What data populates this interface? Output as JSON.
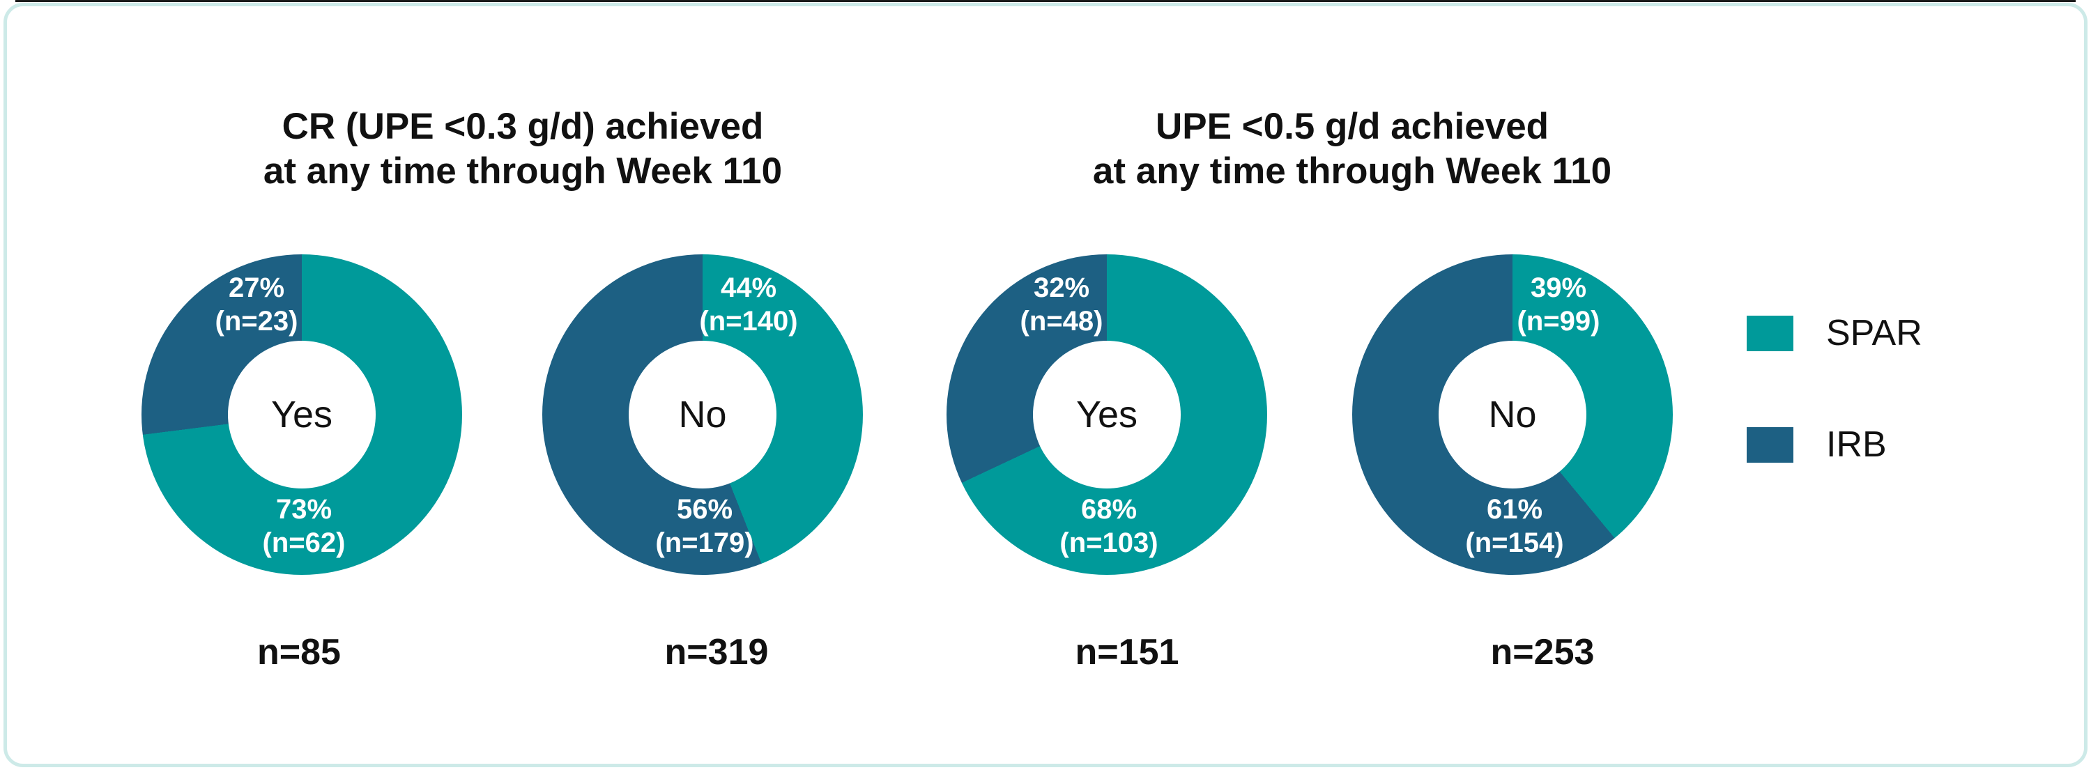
{
  "frame": {
    "border_color": "#cdeae8",
    "top_edge_color": "#1a1a1a",
    "background_color": "#ffffff"
  },
  "chart_data": {
    "type": "pie",
    "subtype": "donut",
    "series_colors": {
      "SPAR": "#009a9a",
      "IRB": "#1d6083"
    },
    "legend": {
      "position": "right",
      "entries": [
        {
          "label": "SPAR",
          "color": "#009a9a"
        },
        {
          "label": "IRB",
          "color": "#1d6083"
        }
      ]
    },
    "groups": [
      {
        "title_line1": "CR (UPE <0.3 g/d) achieved",
        "title_line2": "at any time through Week 110",
        "donuts": [
          {
            "center_label": "Yes",
            "total_n": 85,
            "total_label": "n=85",
            "segments": [
              {
                "series": "SPAR",
                "value_pct": 73,
                "count": 62,
                "pct_label": "73%",
                "n_label": "(n=62)",
                "label_pos": "bottom"
              },
              {
                "series": "IRB",
                "value_pct": 27,
                "count": 23,
                "pct_label": "27%",
                "n_label": "(n=23)",
                "label_pos": "top-left"
              }
            ]
          },
          {
            "center_label": "No",
            "total_n": 319,
            "total_label": "n=319",
            "segments": [
              {
                "series": "SPAR",
                "value_pct": 44,
                "count": 140,
                "pct_label": "44%",
                "n_label": "(n=140)",
                "label_pos": "top-right"
              },
              {
                "series": "IRB",
                "value_pct": 56,
                "count": 179,
                "pct_label": "56%",
                "n_label": "(n=179)",
                "label_pos": "bottom"
              }
            ]
          }
        ]
      },
      {
        "title_line1": "UPE <0.5 g/d achieved",
        "title_line2": "at any time through Week 110",
        "donuts": [
          {
            "center_label": "Yes",
            "total_n": 151,
            "total_label": "n=151",
            "segments": [
              {
                "series": "SPAR",
                "value_pct": 68,
                "count": 103,
                "pct_label": "68%",
                "n_label": "(n=103)",
                "label_pos": "bottom"
              },
              {
                "series": "IRB",
                "value_pct": 32,
                "count": 48,
                "pct_label": "32%",
                "n_label": "(n=48)",
                "label_pos": "top-left"
              }
            ]
          },
          {
            "center_label": "No",
            "total_n": 253,
            "total_label": "n=253",
            "segments": [
              {
                "series": "SPAR",
                "value_pct": 39,
                "count": 99,
                "pct_label": "39%",
                "n_label": "(n=99)",
                "label_pos": "top-right"
              },
              {
                "series": "IRB",
                "value_pct": 61,
                "count": 154,
                "pct_label": "61%",
                "n_label": "(n=154)",
                "label_pos": "bottom"
              }
            ]
          }
        ]
      }
    ]
  }
}
